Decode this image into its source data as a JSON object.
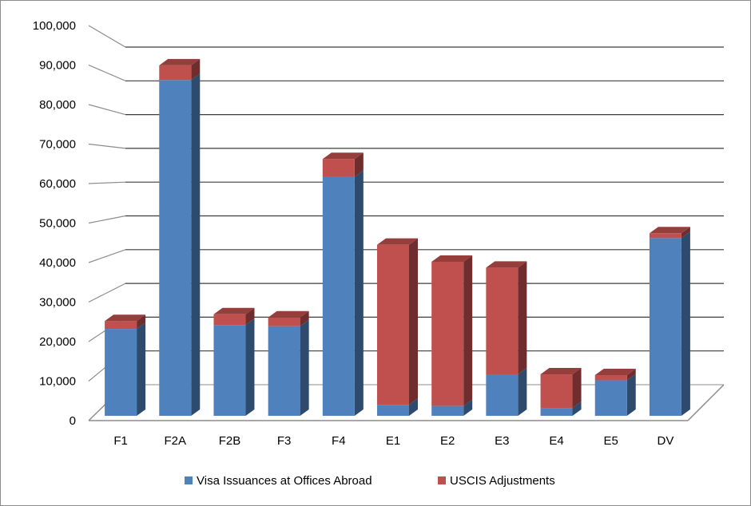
{
  "chart_data": {
    "type": "bar",
    "stacked": true,
    "three_d": true,
    "title": "",
    "xlabel": "",
    "ylabel": "",
    "ylim": [
      0,
      100000
    ],
    "y_ticks": [
      "0",
      "10,000",
      "20,000",
      "30,000",
      "40,000",
      "50,000",
      "60,000",
      "70,000",
      "80,000",
      "90,000",
      "100,000"
    ],
    "categories": [
      "F1",
      "F2A",
      "F2B",
      "F3",
      "F4",
      "E1",
      "E2",
      "E3",
      "E4",
      "E5",
      "DV"
    ],
    "series": [
      {
        "name": "Visa Issuances at Offices Abroad",
        "color": "#4f81bd",
        "values": [
          22000,
          85000,
          23000,
          22700,
          60500,
          2800,
          2500,
          10500,
          2000,
          9000,
          45000
        ]
      },
      {
        "name": "USCIS Adjustments",
        "color": "#c0504d",
        "values": [
          2000,
          3700,
          2700,
          2200,
          4500,
          40500,
          36500,
          27000,
          8500,
          1300,
          1200
        ]
      }
    ],
    "grid": true,
    "legend_position": "bottom"
  }
}
